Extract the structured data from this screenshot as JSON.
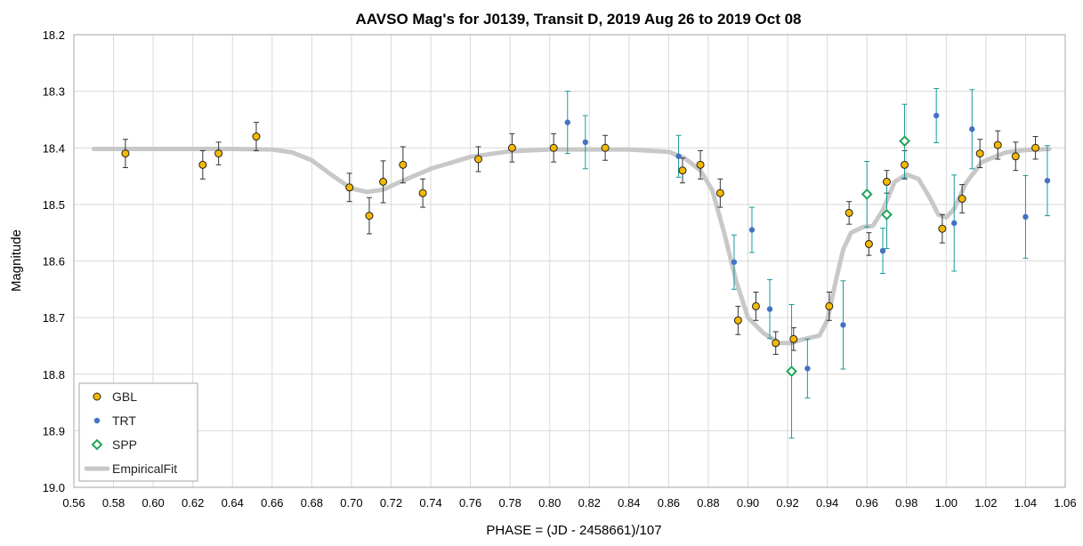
{
  "chart_data": {
    "type": "scatter",
    "title": "AAVSO Mag's for J0139, Transit D, 2019 Aug 26 to 2019 Oct 08",
    "xlabel": "PHASE = (JD - 2458661)/107",
    "ylabel": "Magnitude",
    "xlim": [
      0.56,
      1.06
    ],
    "ylim": [
      18.2,
      19.0
    ],
    "y_inverted": true,
    "grid": true,
    "legend_position": "bottom-left",
    "x_ticks": [
      "0.56",
      "0.58",
      "0.60",
      "0.62",
      "0.64",
      "0.66",
      "0.68",
      "0.70",
      "0.72",
      "0.74",
      "0.76",
      "0.78",
      "0.80",
      "0.82",
      "0.84",
      "0.86",
      "0.88",
      "0.90",
      "0.92",
      "0.94",
      "0.96",
      "0.98",
      "1.00",
      "1.02",
      "1.04",
      "1.06"
    ],
    "y_ticks": [
      "18.2",
      "18.3",
      "18.4",
      "18.5",
      "18.6",
      "18.7",
      "18.8",
      "18.9",
      "19.0"
    ],
    "series": [
      {
        "name": "GBL",
        "marker": "circle",
        "color": "#f5b800",
        "edge_color": "#222222",
        "err_color": "#333333",
        "points": [
          [
            0.586,
            18.41,
            0.025
          ],
          [
            0.625,
            18.43,
            0.025
          ],
          [
            0.633,
            18.41,
            0.02
          ],
          [
            0.652,
            18.38,
            0.025
          ],
          [
            0.699,
            18.47,
            0.025
          ],
          [
            0.709,
            18.52,
            0.032
          ],
          [
            0.716,
            18.46,
            0.037
          ],
          [
            0.726,
            18.43,
            0.032
          ],
          [
            0.736,
            18.48,
            0.025
          ],
          [
            0.764,
            18.42,
            0.022
          ],
          [
            0.781,
            18.4,
            0.025
          ],
          [
            0.802,
            18.4,
            0.025
          ],
          [
            0.828,
            18.4,
            0.022
          ],
          [
            0.867,
            18.44,
            0.022
          ],
          [
            0.876,
            18.43,
            0.025
          ],
          [
            0.886,
            18.48,
            0.025
          ],
          [
            0.895,
            18.705,
            0.025
          ],
          [
            0.904,
            18.68,
            0.025
          ],
          [
            0.914,
            18.745,
            0.02
          ],
          [
            0.923,
            18.738,
            0.02
          ],
          [
            0.941,
            18.68,
            0.025
          ],
          [
            0.951,
            18.515,
            0.02
          ],
          [
            0.961,
            18.57,
            0.02
          ],
          [
            0.97,
            18.46,
            0.02
          ],
          [
            0.979,
            18.43,
            0.025
          ],
          [
            0.998,
            18.543,
            0.025
          ],
          [
            1.008,
            18.49,
            0.025
          ],
          [
            1.017,
            18.41,
            0.025
          ],
          [
            1.026,
            18.395,
            0.025
          ],
          [
            1.035,
            18.415,
            0.025
          ],
          [
            1.045,
            18.4,
            0.02
          ]
        ]
      },
      {
        "name": "TRT",
        "marker": "dot",
        "color": "#4472c4",
        "err_color": "#1a9a9a",
        "points": [
          [
            0.809,
            18.355,
            0.055
          ],
          [
            0.818,
            18.39,
            0.047
          ],
          [
            0.865,
            18.415,
            0.037
          ],
          [
            0.893,
            18.602,
            0.048
          ],
          [
            0.902,
            18.545,
            0.04
          ],
          [
            0.911,
            18.685,
            0.052
          ],
          [
            0.93,
            18.79,
            0.052
          ],
          [
            0.948,
            18.713,
            0.078
          ],
          [
            0.968,
            18.582,
            0.04
          ],
          [
            0.995,
            18.343,
            0.048
          ],
          [
            1.004,
            18.533,
            0.085
          ],
          [
            1.013,
            18.367,
            0.07
          ],
          [
            1.04,
            18.522,
            0.073
          ],
          [
            1.051,
            18.458,
            0.062
          ]
        ]
      },
      {
        "name": "SPP",
        "marker": "diamond",
        "color": "#21a55a",
        "err_color": "#1a9a9a",
        "points": [
          [
            0.922,
            18.795,
            0.118
          ],
          [
            0.96,
            18.482,
            0.058
          ],
          [
            0.97,
            18.518,
            0.06
          ],
          [
            0.979,
            18.388,
            0.065
          ]
        ]
      },
      {
        "name": "EmpiricalFit",
        "marker": "line",
        "color": "#c8c8c8",
        "points": [
          [
            0.57,
            18.402
          ],
          [
            0.6,
            18.402
          ],
          [
            0.64,
            18.402
          ],
          [
            0.66,
            18.403
          ],
          [
            0.67,
            18.408
          ],
          [
            0.68,
            18.422
          ],
          [
            0.69,
            18.448
          ],
          [
            0.7,
            18.472
          ],
          [
            0.708,
            18.478
          ],
          [
            0.716,
            18.474
          ],
          [
            0.726,
            18.458
          ],
          [
            0.74,
            18.437
          ],
          [
            0.76,
            18.416
          ],
          [
            0.78,
            18.406
          ],
          [
            0.8,
            18.403
          ],
          [
            0.84,
            18.403
          ],
          [
            0.86,
            18.407
          ],
          [
            0.868,
            18.418
          ],
          [
            0.876,
            18.44
          ],
          [
            0.882,
            18.475
          ],
          [
            0.888,
            18.55
          ],
          [
            0.894,
            18.635
          ],
          [
            0.9,
            18.7
          ],
          [
            0.908,
            18.728
          ],
          [
            0.916,
            18.745
          ],
          [
            0.922,
            18.745
          ],
          [
            0.926,
            18.74
          ],
          [
            0.932,
            18.735
          ],
          [
            0.936,
            18.732
          ],
          [
            0.94,
            18.705
          ],
          [
            0.944,
            18.64
          ],
          [
            0.948,
            18.58
          ],
          [
            0.952,
            18.55
          ],
          [
            0.958,
            18.54
          ],
          [
            0.963,
            18.538
          ],
          [
            0.968,
            18.51
          ],
          [
            0.974,
            18.46
          ],
          [
            0.98,
            18.447
          ],
          [
            0.986,
            18.455
          ],
          [
            0.992,
            18.49
          ],
          [
            0.996,
            18.518
          ],
          [
            1.0,
            18.523
          ],
          [
            1.004,
            18.508
          ],
          [
            1.01,
            18.462
          ],
          [
            1.018,
            18.425
          ],
          [
            1.03,
            18.408
          ],
          [
            1.04,
            18.404
          ],
          [
            1.052,
            18.402
          ]
        ]
      }
    ]
  }
}
